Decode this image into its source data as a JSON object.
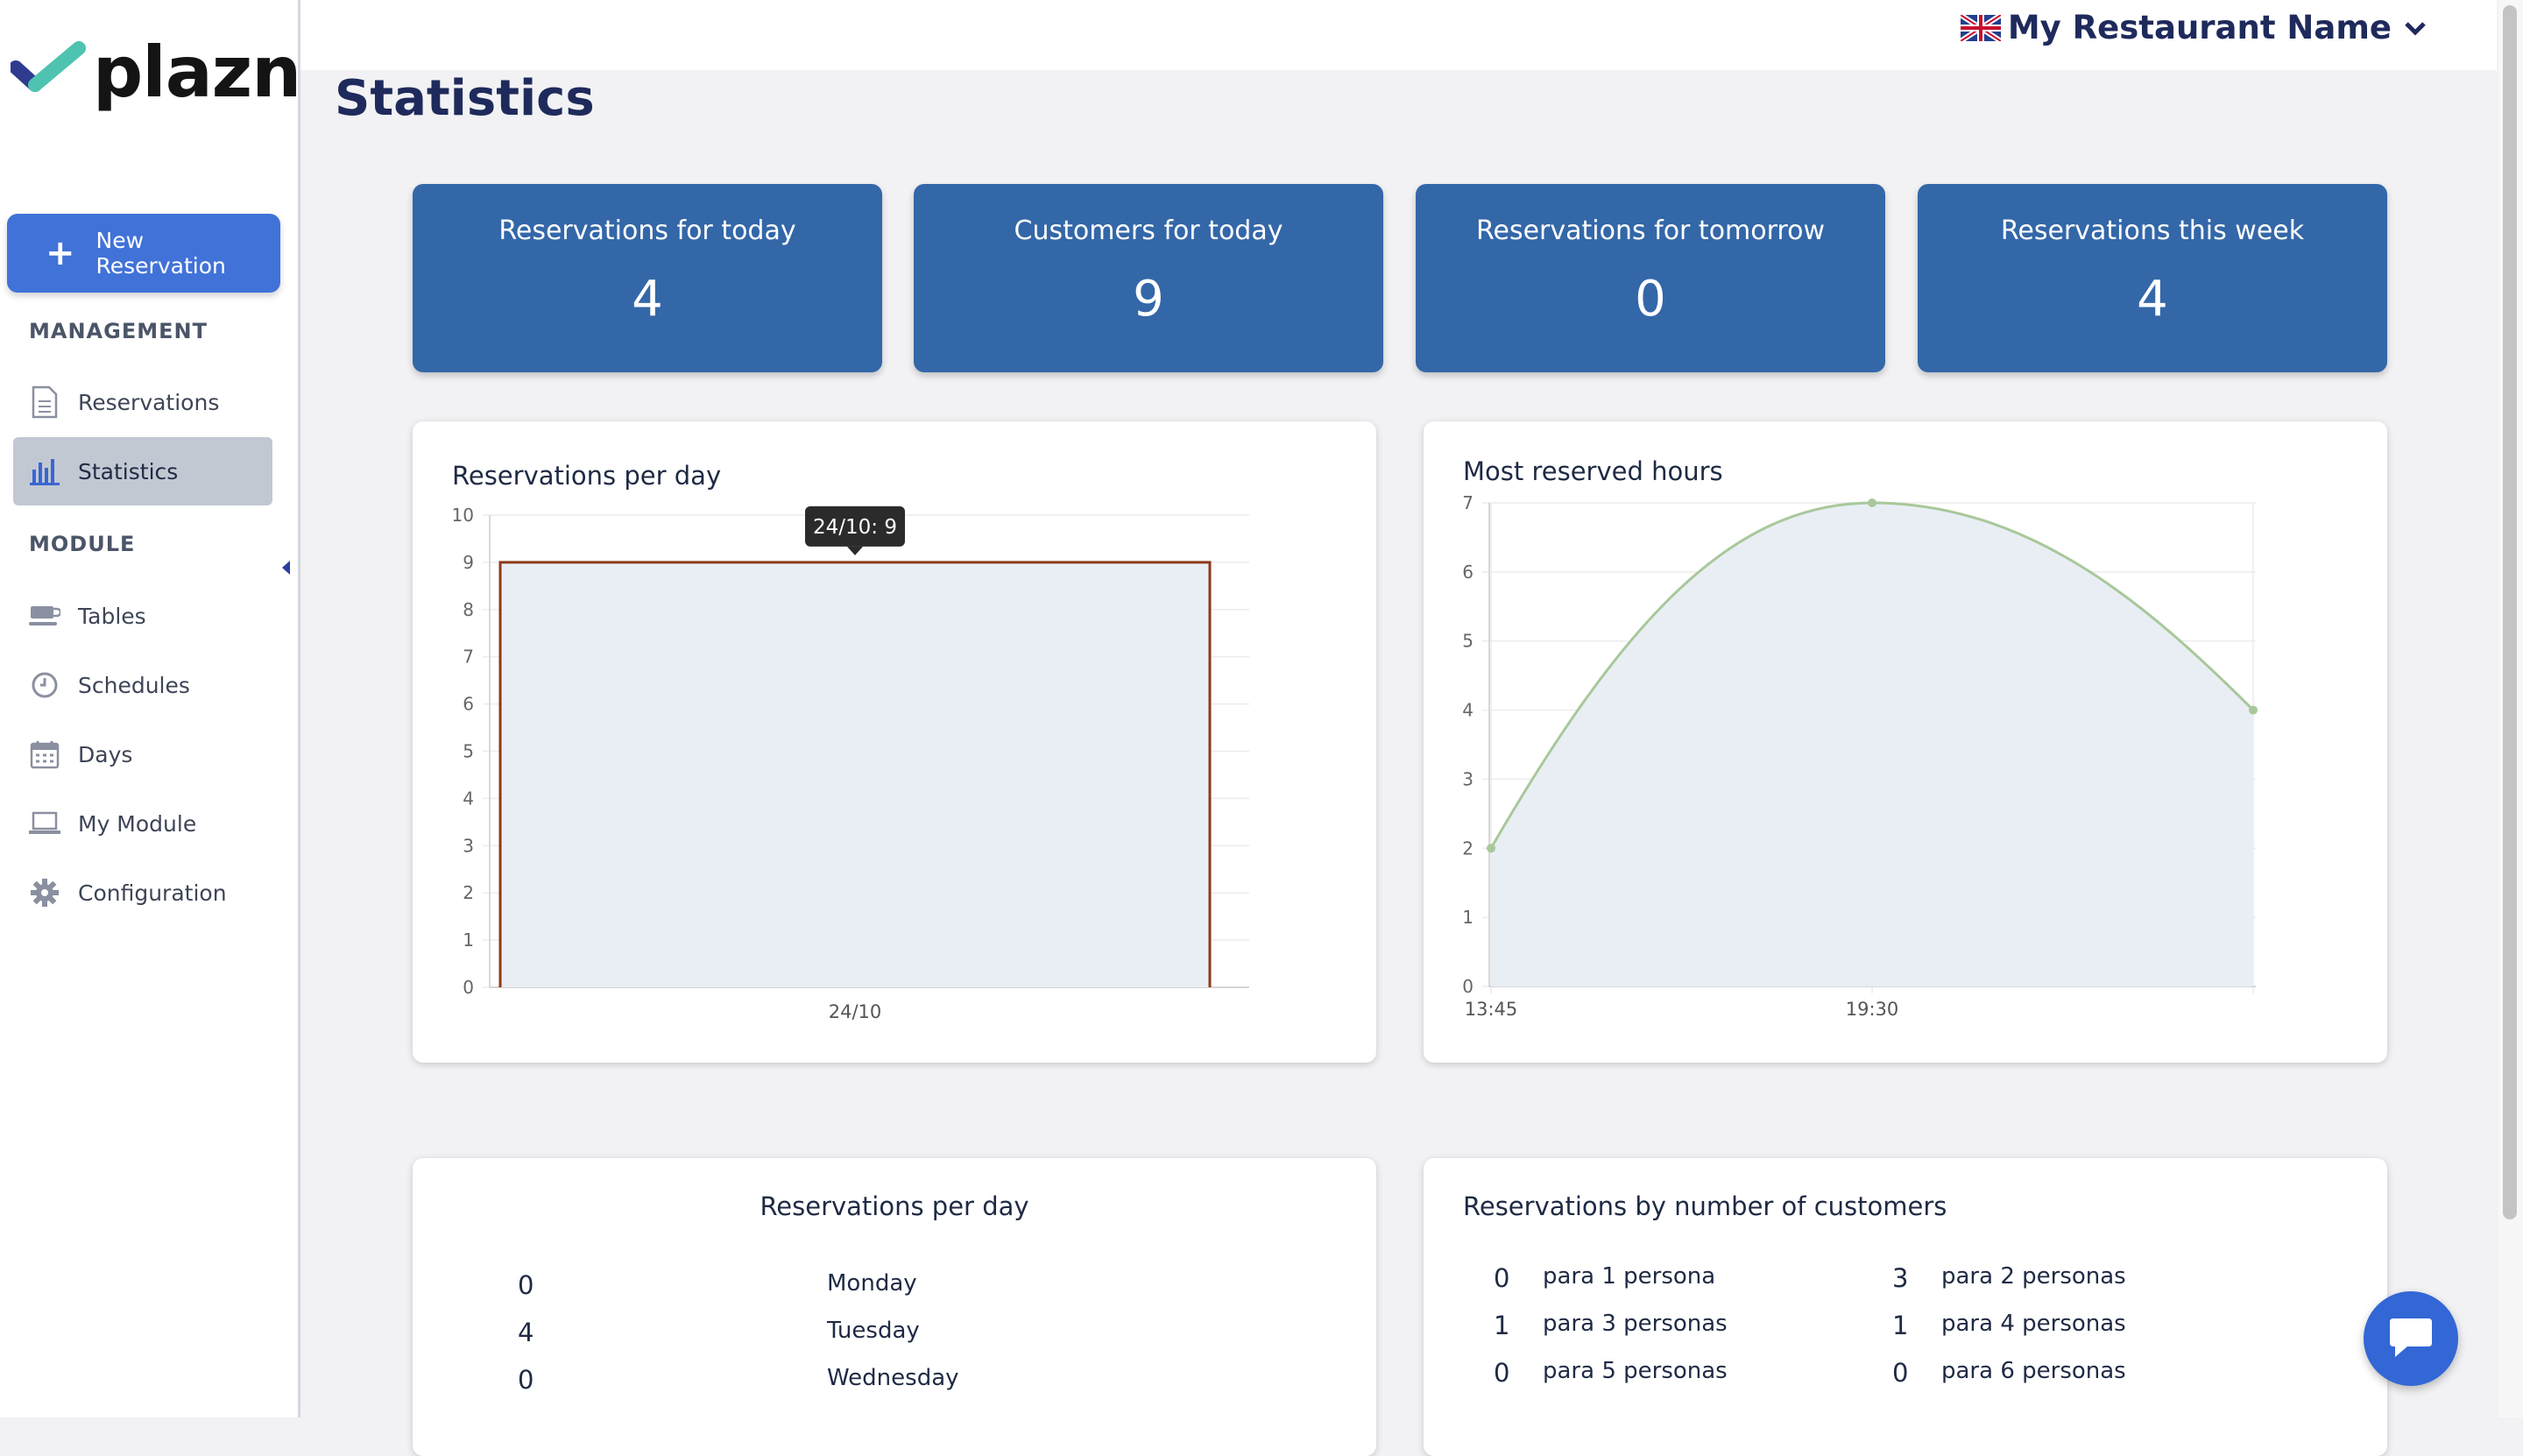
{
  "brand": {
    "name": "plazn"
  },
  "header": {
    "restaurant_name": "My Restaurant Name",
    "flag_icon": "uk-flag-icon"
  },
  "page": {
    "title": "Statistics"
  },
  "sidebar": {
    "new_reservation_label": "New Reservation",
    "management_title": "MANAGEMENT",
    "module_title": "MODULE",
    "items": [
      {
        "label": "Reservations",
        "icon": "document-icon"
      },
      {
        "label": "Statistics",
        "icon": "bar-chart-icon",
        "active": true
      },
      {
        "label": "Tables",
        "icon": "table-icon"
      },
      {
        "label": "Schedules",
        "icon": "clock-icon"
      },
      {
        "label": "Days",
        "icon": "calendar-icon"
      },
      {
        "label": "My Module",
        "icon": "laptop-icon"
      },
      {
        "label": "Configuration",
        "icon": "gear-icon"
      }
    ]
  },
  "kpis": [
    {
      "title": "Reservations for today",
      "value": "4"
    },
    {
      "title": "Customers for today",
      "value": "9"
    },
    {
      "title": "Reservations for tomorrow",
      "value": "0"
    },
    {
      "title": "Reservations this week",
      "value": "4"
    }
  ],
  "chart_data": [
    {
      "type": "area",
      "title": "Reservations per day",
      "categories": [
        "24/10"
      ],
      "values": [
        9
      ],
      "ylim": [
        0,
        10
      ],
      "yticks": [
        "0",
        "1",
        "2",
        "3",
        "4",
        "5",
        "6",
        "7",
        "8",
        "9",
        "10"
      ],
      "tooltip": "24/10: 9",
      "grid": true,
      "colors": {
        "line": "#8b3a1a",
        "fill": "#e9eef4"
      }
    },
    {
      "type": "line",
      "title": "Most reserved hours",
      "categories": [
        "13:45",
        "19:30",
        ""
      ],
      "values": [
        2,
        7,
        4
      ],
      "ylim": [
        0,
        7
      ],
      "yticks": [
        "0",
        "1",
        "2",
        "3",
        "4",
        "5",
        "6",
        "7"
      ],
      "grid": true,
      "colors": {
        "line": "#a8c89a",
        "fill": "#e9eef4"
      }
    }
  ],
  "per_day_table": {
    "title": "Reservations per day",
    "rows": [
      {
        "value": "0",
        "label": "Monday"
      },
      {
        "value": "4",
        "label": "Tuesday"
      },
      {
        "value": "0",
        "label": "Wednesday"
      }
    ]
  },
  "by_customers_table": {
    "title": "Reservations by number of customers",
    "rows": [
      {
        "v1": "0",
        "l1": "para 1 persona",
        "v2": "3",
        "l2": "para 2 personas"
      },
      {
        "v1": "1",
        "l1": "para 3 personas",
        "v2": "1",
        "l2": "para 4 personas"
      },
      {
        "v1": "0",
        "l1": "para 5 personas",
        "v2": "0",
        "l2": "para 6 personas"
      }
    ]
  }
}
